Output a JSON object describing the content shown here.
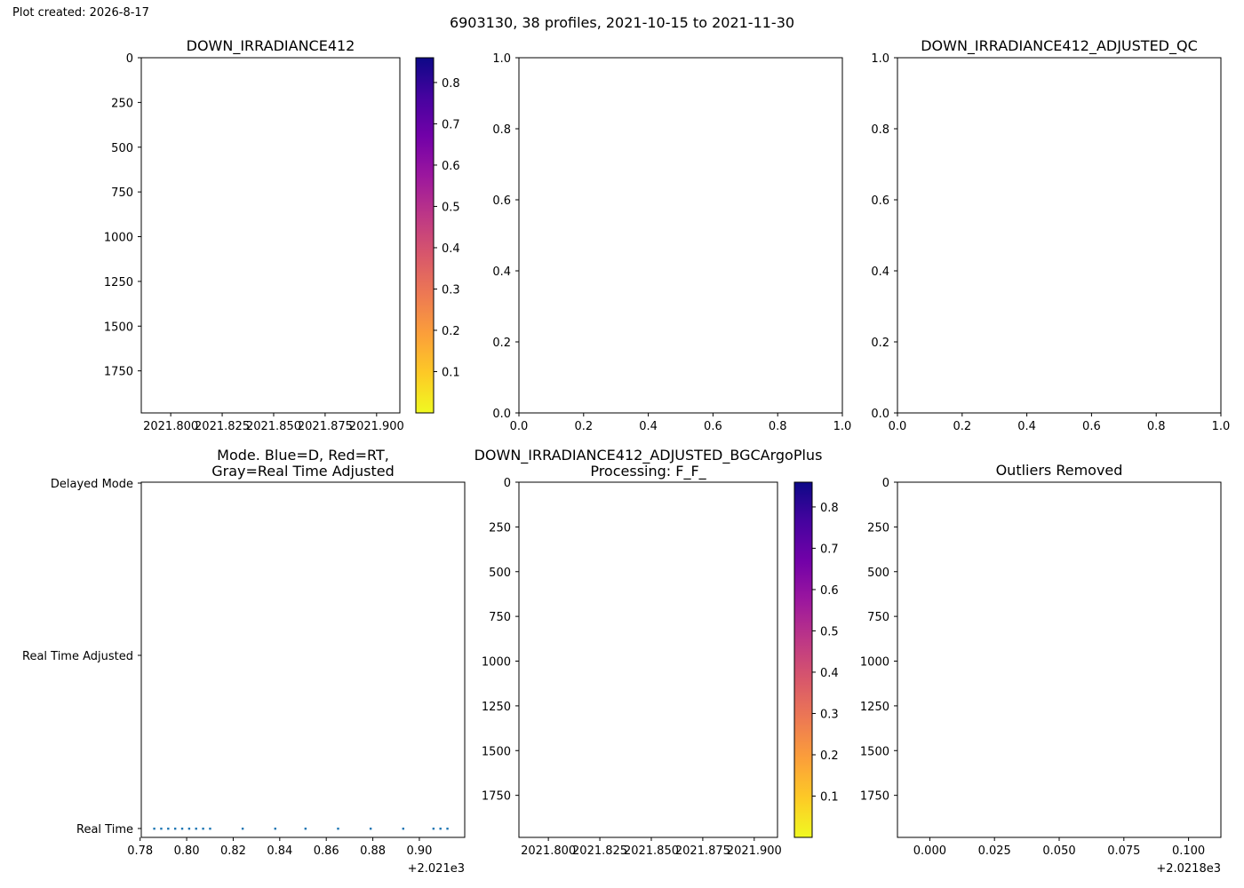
{
  "header": {
    "created": "Plot created: 2026-8-17",
    "suptitle": "6903130, 38 profiles, 2021-10-15 to 2021-11-30"
  },
  "colors": {
    "axis": "#000000",
    "mode_points": "#1f77b4",
    "plasma_r": [
      "#f0f921",
      "#fdca26",
      "#fb9f3a",
      "#ed7953",
      "#d8576b",
      "#bd3786",
      "#9c179e",
      "#7201a8",
      "#46039f",
      "#0d0887"
    ]
  },
  "chart_data": [
    {
      "id": "p1",
      "type": "heatmap",
      "title": "DOWN_IRRADIANCE412",
      "x_ticks": [
        "2021.800",
        "2021.825",
        "2021.850",
        "2021.875",
        "2021.900"
      ],
      "y_ticks": [
        "0",
        "250",
        "500",
        "750",
        "1000",
        "1250",
        "1500",
        "1750"
      ],
      "y_inverted": true,
      "values": [],
      "colorbar": {
        "colormap": "plasma_r",
        "ticks": [
          "0.1",
          "0.2",
          "0.3",
          "0.4",
          "0.5",
          "0.6",
          "0.7",
          "0.8"
        ]
      }
    },
    {
      "id": "p2",
      "type": "scatter",
      "title": "",
      "xlim": [
        0,
        1
      ],
      "ylim": [
        0,
        1
      ],
      "x_ticks": [
        "0.0",
        "0.2",
        "0.4",
        "0.6",
        "0.8",
        "1.0"
      ],
      "y_ticks": [
        "0.0",
        "0.2",
        "0.4",
        "0.6",
        "0.8",
        "1.0"
      ],
      "values": []
    },
    {
      "id": "p3",
      "type": "scatter",
      "title": "DOWN_IRRADIANCE412_ADJUSTED_QC",
      "xlim": [
        0,
        1
      ],
      "ylim": [
        0,
        1
      ],
      "x_ticks": [
        "0.0",
        "0.2",
        "0.4",
        "0.6",
        "0.8",
        "1.0"
      ],
      "y_ticks": [
        "0.0",
        "0.2",
        "0.4",
        "0.6",
        "0.8",
        "1.0"
      ],
      "values": []
    },
    {
      "id": "p4",
      "type": "scatter",
      "title": "Mode. Blue=D, Red=RT,",
      "title2": "Gray=Real Time Adjusted",
      "x_ticks": [
        "0.78",
        "0.80",
        "0.82",
        "0.84",
        "0.86",
        "0.88",
        "0.90"
      ],
      "x_offset": "+2.021e3",
      "y_ticks": [
        "Delayed Mode",
        "Real Time Adjusted",
        "Real Time"
      ],
      "x": [
        0.786,
        0.789,
        0.792,
        0.795,
        0.798,
        0.801,
        0.804,
        0.807,
        0.81,
        0.824,
        0.838,
        0.851,
        0.865,
        0.879,
        0.893,
        0.906,
        0.909,
        0.912
      ],
      "y": [
        "Real Time",
        "Real Time",
        "Real Time",
        "Real Time",
        "Real Time",
        "Real Time",
        "Real Time",
        "Real Time",
        "Real Time",
        "Real Time",
        "Real Time",
        "Real Time",
        "Real Time",
        "Real Time",
        "Real Time",
        "Real Time",
        "Real Time",
        "Real Time"
      ]
    },
    {
      "id": "p5",
      "type": "heatmap",
      "title": "DOWN_IRRADIANCE412_ADJUSTED_BGCArgoPlus",
      "title2": "Processing: F_F_",
      "x_ticks": [
        "2021.800",
        "2021.825",
        "2021.850",
        "2021.875",
        "2021.900"
      ],
      "y_ticks": [
        "0",
        "250",
        "500",
        "750",
        "1000",
        "1250",
        "1500",
        "1750"
      ],
      "y_inverted": true,
      "values": [],
      "colorbar": {
        "colormap": "plasma_r",
        "ticks": [
          "0.1",
          "0.2",
          "0.3",
          "0.4",
          "0.5",
          "0.6",
          "0.7",
          "0.8"
        ]
      }
    },
    {
      "id": "p6",
      "type": "scatter",
      "title": "Outliers Removed",
      "x_ticks": [
        "0.000",
        "0.025",
        "0.050",
        "0.075",
        "0.100"
      ],
      "x_offset": "+2.0218e3",
      "y_ticks": [
        "0",
        "250",
        "500",
        "750",
        "1000",
        "1250",
        "1500",
        "1750"
      ],
      "y_inverted": true,
      "values": []
    }
  ]
}
